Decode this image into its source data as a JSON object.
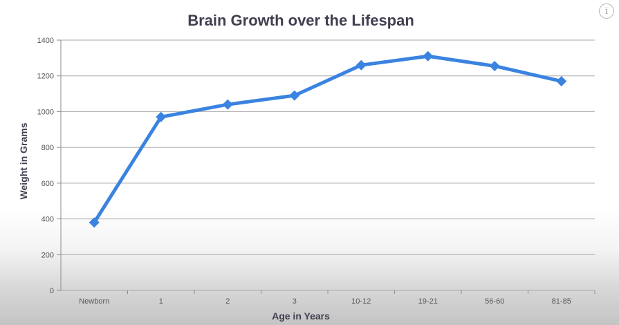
{
  "chart_data": {
    "type": "line",
    "title": "Brain Growth over the Lifespan",
    "xlabel": "Age in Years",
    "ylabel": "Weight in Grams",
    "categories": [
      "Newborn",
      "1",
      "2",
      "3",
      "10-12",
      "19-21",
      "56-60",
      "81-85"
    ],
    "series": [
      {
        "values": [
          380,
          970,
          1040,
          1090,
          1260,
          1310,
          1255,
          1170
        ]
      }
    ],
    "ylim": [
      0,
      1400
    ],
    "yticks": [
      "0",
      "200",
      "400",
      "600",
      "800",
      "1000",
      "1200",
      "1400"
    ],
    "grid": true,
    "line_color": "#3a83e0",
    "grid_color": "#a8a8a8",
    "info_icon": "info-icon"
  },
  "info_button_glyph": "i"
}
